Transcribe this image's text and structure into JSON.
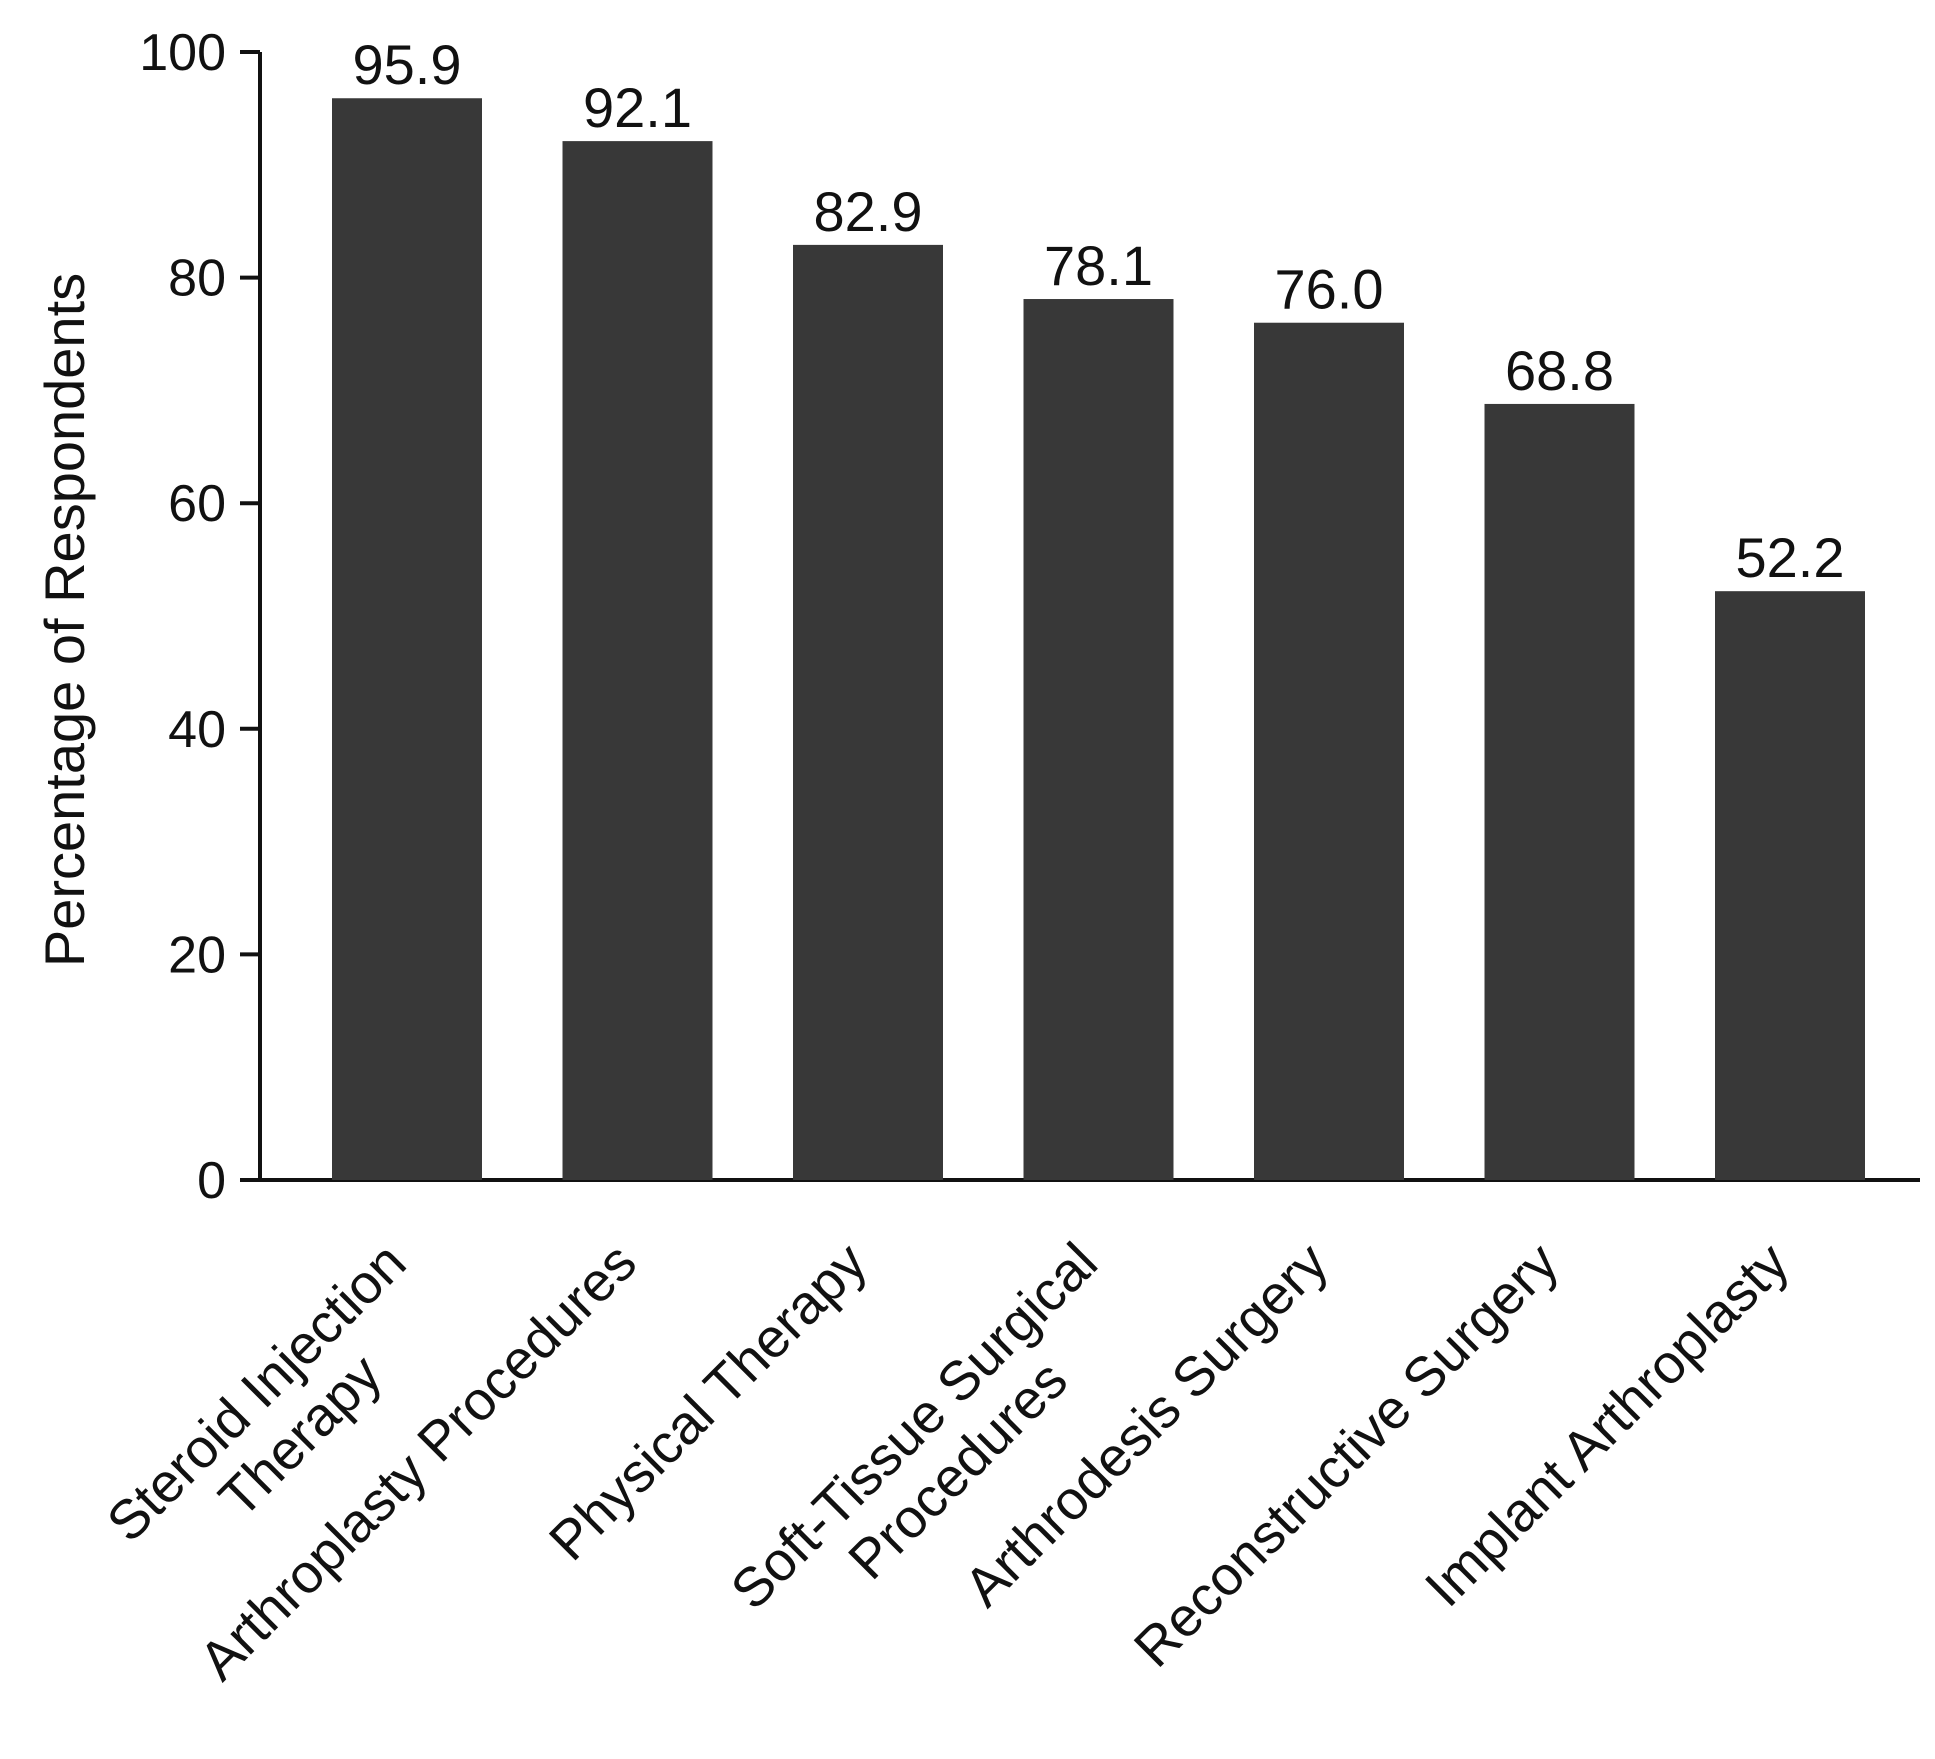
{
  "chart_data": {
    "type": "bar",
    "categories": [
      [
        "Steroid Injection",
        "Therapy"
      ],
      [
        "Arthroplasty Procedures"
      ],
      [
        "Physical Therapy"
      ],
      [
        "Soft-Tissue Surgical",
        "Procedures"
      ],
      [
        "Arthrodesis Surgery"
      ],
      [
        "Reconstructive Surgery"
      ],
      [
        "Implant Arthroplasty"
      ]
    ],
    "values": [
      95.9,
      92.1,
      82.9,
      78.1,
      76.0,
      68.8,
      52.2
    ],
    "value_labels": [
      "95.9",
      "92.1",
      "82.9",
      "78.1",
      "76.0",
      "68.8",
      "52.2"
    ],
    "ylabel": "Percentage of Respondents",
    "ylim": [
      0,
      100
    ],
    "yticks": [
      0,
      20,
      40,
      60,
      80,
      100
    ],
    "grid": false,
    "legend": "none",
    "bar_color": "#383838",
    "axis_color": "#111111"
  }
}
